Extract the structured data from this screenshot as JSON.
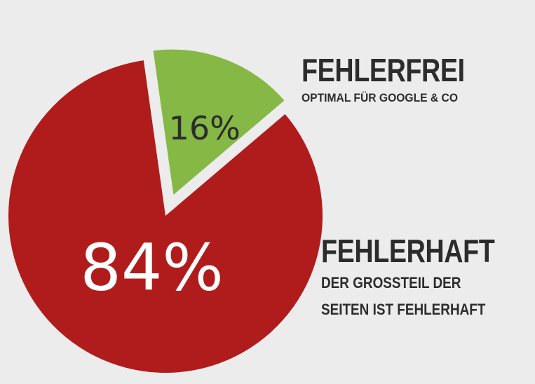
{
  "chart_data": {
    "type": "pie",
    "slices": [
      {
        "label": "FEHLERHAFT",
        "value": 84,
        "display": "84%",
        "color": "#b01c1c",
        "text_color": "#ffffff"
      },
      {
        "label": "FEHLERFREI",
        "value": 16,
        "display": "16%",
        "color": "#86b845",
        "text_color": "#2c2c2c",
        "exploded": true
      }
    ],
    "legend": {
      "fehlerfrei": {
        "title": "FEHLERFREI",
        "subtitle": "OPTIMAL FÜR GOOGLE & CO"
      },
      "fehlerhaft": {
        "title": "FEHLERHAFT",
        "subtitle_line1": "DER GROSSTEIL DER",
        "subtitle_line2": "SEITEN IST FEHLERHAFT"
      }
    },
    "background": "#ececec"
  }
}
